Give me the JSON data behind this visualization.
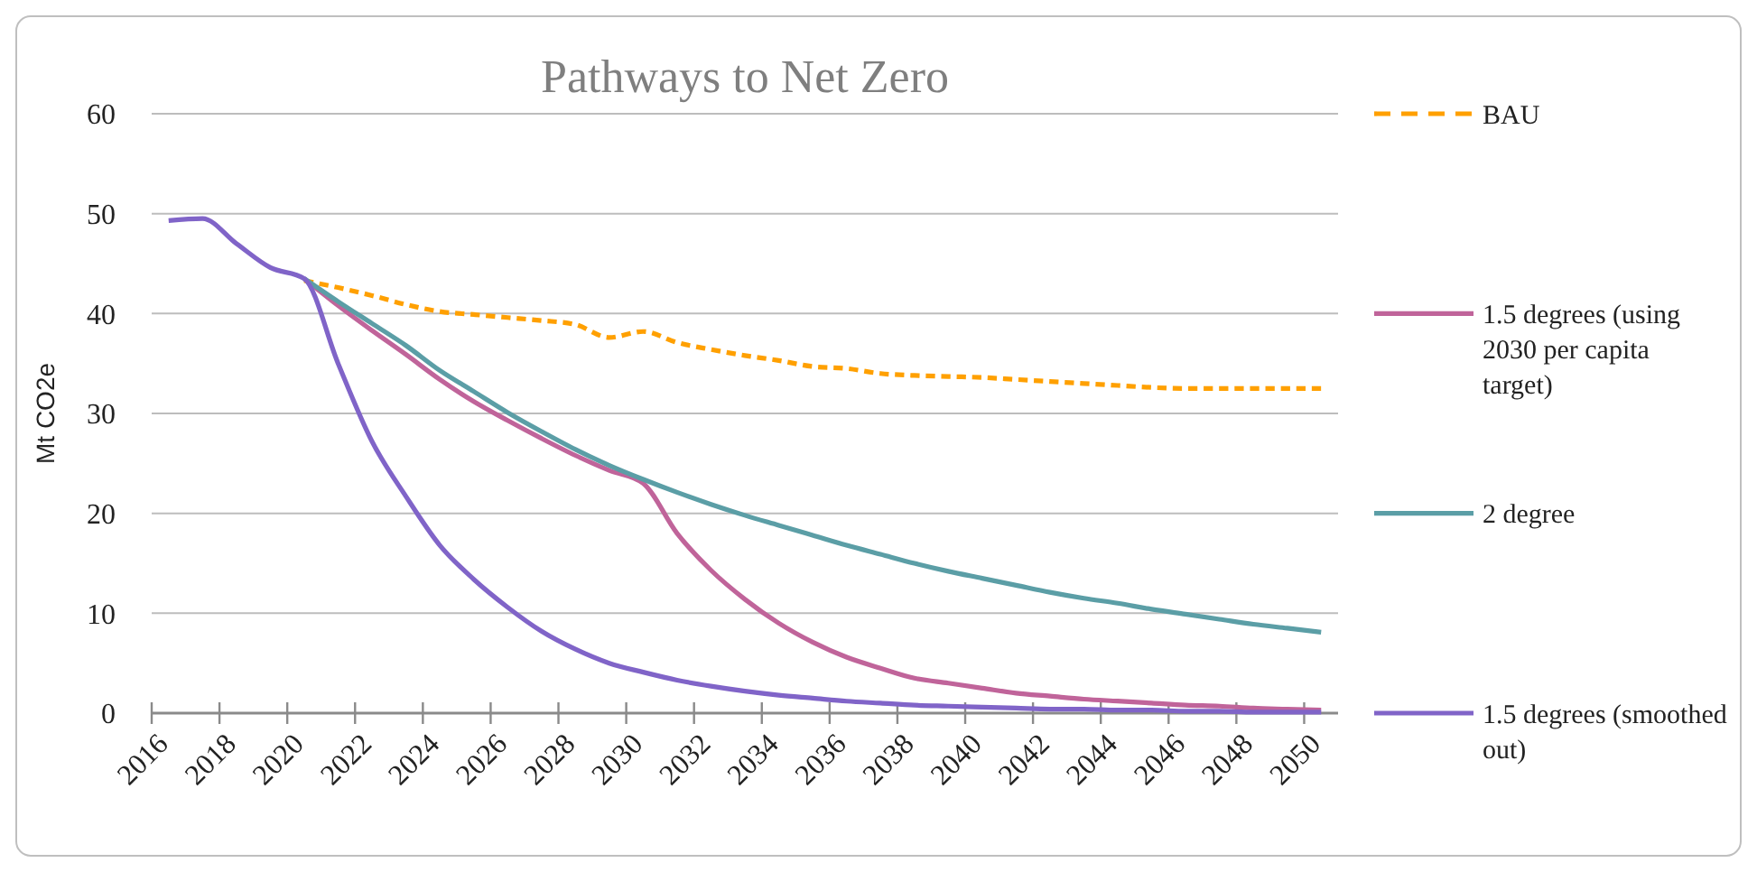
{
  "chart_data": {
    "type": "line",
    "title": "Pathways to Net Zero",
    "ylabel": "Mt CO2e",
    "x": [
      2016.5,
      2017.5,
      2018.5,
      2019.5,
      2020.5,
      2021.5,
      2022.5,
      2023.5,
      2024.5,
      2025.5,
      2026.5,
      2027.5,
      2028.5,
      2029.5,
      2030.5,
      2031.5,
      2032.5,
      2033.5,
      2034.5,
      2035.5,
      2036.5,
      2037.5,
      2038.5,
      2039.5,
      2040.5,
      2041.5,
      2042.5,
      2043.5,
      2044.5,
      2045.5,
      2046.5,
      2047.5,
      2048.5,
      2049.5,
      2050.5
    ],
    "series": [
      {
        "name": "BAU",
        "color": "#ffa000",
        "line_style": "dashed",
        "values": [
          null,
          null,
          null,
          null,
          43.3,
          42.6,
          41.8,
          40.9,
          40.2,
          39.9,
          39.6,
          39.3,
          38.9,
          37.6,
          38.2,
          37.1,
          36.4,
          35.8,
          35.3,
          34.7,
          34.5,
          34.0,
          33.8,
          33.7,
          33.6,
          33.4,
          33.2,
          33.0,
          32.8,
          32.6,
          32.5,
          32.5,
          32.5,
          32.5,
          32.5
        ]
      },
      {
        "name": "1.5 degrees (using 2030 per capita target)",
        "color": "#c0649a",
        "values": [
          null,
          null,
          null,
          null,
          43.5,
          40.8,
          38.3,
          35.9,
          33.4,
          31.2,
          29.3,
          27.5,
          25.8,
          24.3,
          23.0,
          18.0,
          14.3,
          11.4,
          9.0,
          7.1,
          5.6,
          4.5,
          3.5,
          3.0,
          2.5,
          2.0,
          1.7,
          1.4,
          1.2,
          1.0,
          0.8,
          0.7,
          0.5,
          0.4,
          0.3
        ]
      },
      {
        "name": "2 degree",
        "color": "#5b9ea6",
        "values": [
          null,
          null,
          null,
          null,
          43.5,
          41.2,
          39.0,
          36.8,
          34.3,
          32.2,
          30.1,
          28.2,
          26.4,
          24.8,
          23.4,
          22.1,
          20.9,
          19.8,
          18.8,
          17.8,
          16.8,
          15.9,
          15.0,
          14.2,
          13.5,
          12.8,
          12.1,
          11.5,
          11.0,
          10.4,
          9.9,
          9.4,
          8.9,
          8.5,
          8.1
        ]
      },
      {
        "name": "1.5 degrees (smoothed out)",
        "color": "#8064c8",
        "values": [
          49.3,
          49.5,
          47.0,
          44.6,
          43.5,
          35.0,
          27.2,
          21.7,
          16.8,
          13.4,
          10.6,
          8.2,
          6.4,
          5.0,
          4.1,
          3.3,
          2.7,
          2.2,
          1.8,
          1.5,
          1.2,
          1.0,
          0.8,
          0.7,
          0.6,
          0.5,
          0.4,
          0.4,
          0.3,
          0.3,
          0.2,
          0.2,
          0.1,
          0.1,
          0.1
        ]
      }
    ],
    "xlim": [
      2016,
      2051
    ],
    "xticks": [
      2016,
      2018,
      2020,
      2022,
      2024,
      2026,
      2028,
      2030,
      2032,
      2034,
      2036,
      2038,
      2040,
      2042,
      2044,
      2046,
      2048,
      2050
    ],
    "ylim": [
      0,
      60
    ],
    "yticks": [
      0,
      10,
      20,
      30,
      40,
      50,
      60
    ],
    "grid": "y",
    "legend": "right",
    "marker": "none"
  }
}
